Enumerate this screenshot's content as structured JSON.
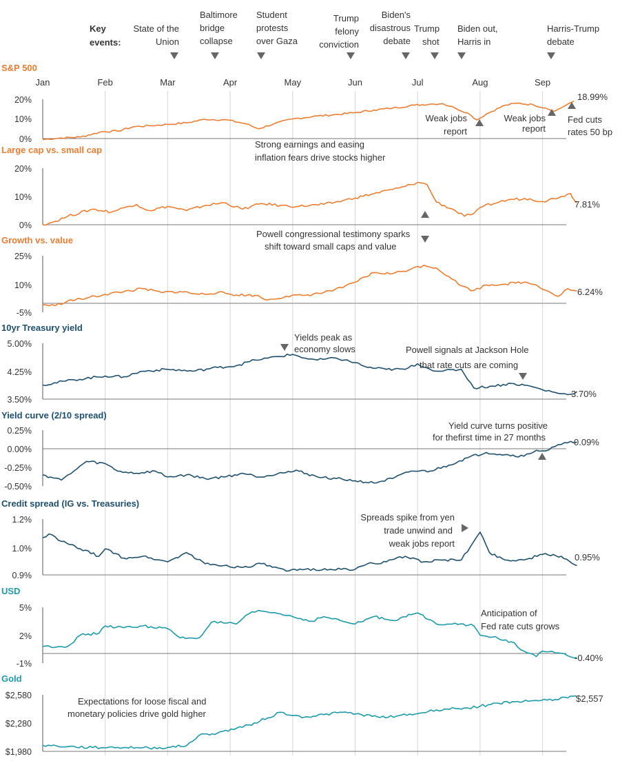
{
  "colors": {
    "orange": "#ee7d30",
    "navy": "#1d4f6e",
    "teal": "#1b9aaa",
    "grid": "#d6d6d6",
    "ref": "#777777",
    "marker": "#666666"
  },
  "header": {
    "key_events_label": [
      "Key",
      "events:"
    ],
    "months": [
      "Jan",
      "Feb",
      "Mar",
      "Apr",
      "May",
      "Jun",
      "Jul",
      "Aug",
      "Sep"
    ],
    "events": [
      {
        "lines": [
          "State of the",
          "Union"
        ],
        "marker": true
      },
      {
        "lines": [
          "Baltimore",
          "bridge",
          "collapse"
        ],
        "marker": true
      },
      {
        "lines": [
          "Student",
          "protests",
          "over Gaza"
        ],
        "marker": true
      },
      {
        "lines": [
          "Trump",
          "felony",
          "conviction"
        ],
        "marker": true
      },
      {
        "lines": [
          "Biden's",
          "disastrous",
          "debate"
        ],
        "marker": true
      },
      {
        "lines": [
          "Trump",
          "shot"
        ],
        "marker": true
      },
      {
        "lines": [
          "Biden out,",
          "Harris in"
        ],
        "marker": true
      },
      {
        "lines": [
          "Harris-Trump",
          "debate"
        ],
        "marker": true
      }
    ]
  },
  "chart_data": [
    {
      "type": "line",
      "title": "S&P 500",
      "color": "orange",
      "y_ticks": [
        "20%",
        "10%",
        "0%"
      ],
      "ylim": [
        0,
        20
      ],
      "baseline": 0,
      "x_months": [
        "Jan",
        "Feb",
        "Mar",
        "Apr",
        "May",
        "Jun",
        "Jul",
        "Aug",
        "Sep"
      ],
      "keypoints": [
        [
          0,
          -0.5
        ],
        [
          0.3,
          0.3
        ],
        [
          0.6,
          0.8
        ],
        [
          0.95,
          3.5
        ],
        [
          1.2,
          3.8
        ],
        [
          1.45,
          6
        ],
        [
          1.7,
          6.5
        ],
        [
          2.0,
          7.2
        ],
        [
          2.3,
          8
        ],
        [
          2.6,
          9.8
        ],
        [
          2.95,
          9.5
        ],
        [
          3.25,
          7.5
        ],
        [
          3.45,
          5
        ],
        [
          3.7,
          7.5
        ],
        [
          4.0,
          10
        ],
        [
          4.4,
          11.5
        ],
        [
          4.7,
          12.2
        ],
        [
          5.0,
          13.2
        ],
        [
          5.3,
          14.5
        ],
        [
          5.6,
          15.5
        ],
        [
          5.95,
          17
        ],
        [
          6.2,
          17.5
        ],
        [
          6.4,
          17.8
        ],
        [
          6.6,
          15.5
        ],
        [
          6.8,
          13
        ],
        [
          6.95,
          9.5
        ],
        [
          7.1,
          12.5
        ],
        [
          7.4,
          17
        ],
        [
          7.6,
          18
        ],
        [
          7.85,
          17.2
        ],
        [
          8.05,
          15.5
        ],
        [
          8.2,
          14
        ],
        [
          8.4,
          17.5
        ],
        [
          8.5,
          18.99
        ]
      ],
      "end_label": "18.99%",
      "annotations": [
        [
          "Weak jobs",
          "report"
        ],
        [
          "Weak jobs",
          "report"
        ],
        [
          "Fed cuts",
          "rates 50 bp"
        ]
      ]
    },
    {
      "type": "line",
      "title": "Large cap vs. small cap",
      "color": "orange",
      "y_ticks": [
        "20%",
        "10%",
        "0%"
      ],
      "ylim": [
        0,
        20
      ],
      "baseline": null,
      "keypoints": [
        [
          0,
          0
        ],
        [
          0.2,
          1.2
        ],
        [
          0.4,
          3
        ],
        [
          0.8,
          5.5
        ],
        [
          1.1,
          4.5
        ],
        [
          1.3,
          6
        ],
        [
          1.5,
          7.2
        ],
        [
          1.7,
          5
        ],
        [
          2.0,
          6.5
        ],
        [
          2.3,
          5
        ],
        [
          2.6,
          6.8
        ],
        [
          2.9,
          7.8
        ],
        [
          3.2,
          5.5
        ],
        [
          3.5,
          7.5
        ],
        [
          3.8,
          6.8
        ],
        [
          4.1,
          6.5
        ],
        [
          4.5,
          7.2
        ],
        [
          4.8,
          8.5
        ],
        [
          5.0,
          9.5
        ],
        [
          5.3,
          11
        ],
        [
          5.6,
          12.5
        ],
        [
          5.8,
          13.5
        ],
        [
          6.0,
          15
        ],
        [
          6.15,
          14.2
        ],
        [
          6.3,
          8
        ],
        [
          6.6,
          5
        ],
        [
          6.75,
          3
        ],
        [
          6.9,
          4
        ],
        [
          7.05,
          6.5
        ],
        [
          7.3,
          8
        ],
        [
          7.5,
          9
        ],
        [
          7.8,
          9.2
        ],
        [
          8.0,
          8.2
        ],
        [
          8.3,
          10
        ],
        [
          8.45,
          11
        ],
        [
          8.5,
          9
        ],
        [
          8.55,
          7.81
        ]
      ],
      "end_label": "7.81%",
      "annotations": [
        [
          "Strong earnings and easing",
          "inflation fears drive stocks higher"
        ],
        [
          "Powell congressional testimony sparks",
          "shift toward small caps and value"
        ]
      ]
    },
    {
      "type": "line",
      "title": "Growth vs. value",
      "color": "orange",
      "y_ticks": [
        "25%",
        "10%",
        "-5%"
      ],
      "ylim": [
        -5,
        25
      ],
      "baseline": 0,
      "keypoints": [
        [
          0,
          -1
        ],
        [
          0.2,
          -1.5
        ],
        [
          0.4,
          1
        ],
        [
          0.7,
          2.5
        ],
        [
          1.0,
          4.5
        ],
        [
          1.3,
          6
        ],
        [
          1.6,
          7.5
        ],
        [
          1.9,
          5.5
        ],
        [
          2.2,
          6
        ],
        [
          2.5,
          4.5
        ],
        [
          2.8,
          5.5
        ],
        [
          3.1,
          4.2
        ],
        [
          3.4,
          4
        ],
        [
          3.6,
          1.5
        ],
        [
          3.9,
          3.5
        ],
        [
          4.2,
          4
        ],
        [
          4.5,
          5.5
        ],
        [
          4.8,
          8
        ],
        [
          5.0,
          11
        ],
        [
          5.3,
          16
        ],
        [
          5.6,
          15.5
        ],
        [
          5.9,
          18
        ],
        [
          6.1,
          20
        ],
        [
          6.3,
          18.5
        ],
        [
          6.5,
          14
        ],
        [
          6.7,
          9
        ],
        [
          6.9,
          6.5
        ],
        [
          7.1,
          9.5
        ],
        [
          7.4,
          10
        ],
        [
          7.7,
          11
        ],
        [
          7.9,
          9.5
        ],
        [
          8.1,
          6
        ],
        [
          8.25,
          3.5
        ],
        [
          8.4,
          7.5
        ],
        [
          8.55,
          6.24
        ]
      ],
      "end_label": "6.24%",
      "annotations": []
    },
    {
      "type": "line",
      "title": "10yr Treasury yield",
      "color": "navy",
      "y_ticks": [
        "5.00%",
        "4.25%",
        "3.50%"
      ],
      "ylim": [
        3.5,
        5.0
      ],
      "baseline": null,
      "keypoints": [
        [
          0,
          3.88
        ],
        [
          0.5,
          4.02
        ],
        [
          1.0,
          4.12
        ],
        [
          1.3,
          4.1
        ],
        [
          1.6,
          4.25
        ],
        [
          2.0,
          4.3
        ],
        [
          2.4,
          4.25
        ],
        [
          2.8,
          4.35
        ],
        [
          3.1,
          4.4
        ],
        [
          3.4,
          4.55
        ],
        [
          3.6,
          4.6
        ],
        [
          4.0,
          4.7
        ],
        [
          4.2,
          4.6
        ],
        [
          4.4,
          4.55
        ],
        [
          4.7,
          4.6
        ],
        [
          5.0,
          4.48
        ],
        [
          5.2,
          4.35
        ],
        [
          5.5,
          4.3
        ],
        [
          5.8,
          4.3
        ],
        [
          6.0,
          4.45
        ],
        [
          6.2,
          4.3
        ],
        [
          6.4,
          4.25
        ],
        [
          6.7,
          4.3
        ],
        [
          6.9,
          3.8
        ],
        [
          7.2,
          3.85
        ],
        [
          7.5,
          3.92
        ],
        [
          7.8,
          3.85
        ],
        [
          8.0,
          3.75
        ],
        [
          8.2,
          3.68
        ],
        [
          8.4,
          3.62
        ],
        [
          8.55,
          3.7
        ]
      ],
      "end_label": "3.70%",
      "annotations": [
        [
          "Yields peak as",
          "economy slows"
        ],
        [
          "Powell signals at Jackson Hole",
          "that rate cuts are coming"
        ]
      ]
    },
    {
      "type": "line",
      "title": "Yield curve (2/10 spread)",
      "color": "navy",
      "y_ticks": [
        "0.25%",
        "0.00%",
        "-0.25%",
        "-0.50%"
      ],
      "ylim": [
        -0.5,
        0.25
      ],
      "baseline": 0,
      "keypoints": [
        [
          0,
          -0.35
        ],
        [
          0.3,
          -0.42
        ],
        [
          0.5,
          -0.3
        ],
        [
          0.7,
          -0.17
        ],
        [
          1.0,
          -0.2
        ],
        [
          1.2,
          -0.3
        ],
        [
          1.5,
          -0.33
        ],
        [
          1.8,
          -0.3
        ],
        [
          2.0,
          -0.38
        ],
        [
          2.3,
          -0.35
        ],
        [
          2.6,
          -0.4
        ],
        [
          2.9,
          -0.38
        ],
        [
          3.2,
          -0.33
        ],
        [
          3.5,
          -0.38
        ],
        [
          3.8,
          -0.32
        ],
        [
          4.1,
          -0.3
        ],
        [
          4.4,
          -0.38
        ],
        [
          4.7,
          -0.4
        ],
        [
          5.0,
          -0.43
        ],
        [
          5.3,
          -0.46
        ],
        [
          5.6,
          -0.4
        ],
        [
          5.9,
          -0.3
        ],
        [
          6.2,
          -0.3
        ],
        [
          6.5,
          -0.22
        ],
        [
          6.8,
          -0.12
        ],
        [
          7.1,
          -0.05
        ],
        [
          7.4,
          -0.08
        ],
        [
          7.7,
          -0.1
        ],
        [
          7.9,
          -0.02
        ],
        [
          8.05,
          -0.03
        ],
        [
          8.2,
          0.03
        ],
        [
          8.4,
          0.08
        ],
        [
          8.55,
          0.09
        ]
      ],
      "end_label": "0.09%",
      "annotations": [
        [
          "Yield curve turns positive",
          "for thefirst time in 27 months"
        ]
      ]
    },
    {
      "type": "line",
      "title": "Credit spread (IG vs. Treasuries)",
      "color": "navy",
      "y_ticks": [
        "1.2%",
        "1.0%",
        "0.9%"
      ],
      "ylim": [
        0.9,
        1.2
      ],
      "baseline": null,
      "keypoints": [
        [
          0,
          1.1
        ],
        [
          0.1,
          1.12
        ],
        [
          0.3,
          1.08
        ],
        [
          0.6,
          1.04
        ],
        [
          0.9,
          1.0
        ],
        [
          1.0,
          1.04
        ],
        [
          1.3,
          0.99
        ],
        [
          1.6,
          1.0
        ],
        [
          2.0,
          0.97
        ],
        [
          2.3,
          1.02
        ],
        [
          2.6,
          0.96
        ],
        [
          2.9,
          0.95
        ],
        [
          3.2,
          0.94
        ],
        [
          3.5,
          0.96
        ],
        [
          3.9,
          0.92
        ],
        [
          4.2,
          0.93
        ],
        [
          4.6,
          0.93
        ],
        [
          5.0,
          0.93
        ],
        [
          5.2,
          0.96
        ],
        [
          5.5,
          0.97
        ],
        [
          5.8,
          1.0
        ],
        [
          6.1,
          0.97
        ],
        [
          6.4,
          0.98
        ],
        [
          6.7,
          0.98
        ],
        [
          6.9,
          1.08
        ],
        [
          7.0,
          1.13
        ],
        [
          7.15,
          1.02
        ],
        [
          7.4,
          0.98
        ],
        [
          7.7,
          0.98
        ],
        [
          8.0,
          1.01
        ],
        [
          8.3,
          1.0
        ],
        [
          8.55,
          0.95
        ]
      ],
      "end_label": "0.95%",
      "annotations": [
        [
          "Spreads spike from yen",
          "trade unwind and",
          "weak jobs report"
        ]
      ]
    },
    {
      "type": "line",
      "title": "USD",
      "color": "teal",
      "y_ticks": [
        "5%",
        "2%",
        "-1%"
      ],
      "ylim": [
        -1,
        5
      ],
      "baseline": 0,
      "keypoints": [
        [
          0,
          0.8
        ],
        [
          0.4,
          0.8
        ],
        [
          0.6,
          2
        ],
        [
          0.9,
          2.2
        ],
        [
          1.0,
          3
        ],
        [
          1.3,
          2.8
        ],
        [
          1.6,
          3.0
        ],
        [
          2.0,
          2.7
        ],
        [
          2.2,
          1.7
        ],
        [
          2.5,
          1.7
        ],
        [
          2.7,
          3.4
        ],
        [
          2.9,
          3.3
        ],
        [
          3.1,
          3.2
        ],
        [
          3.3,
          4.3
        ],
        [
          3.5,
          4.6
        ],
        [
          3.8,
          4.3
        ],
        [
          4.0,
          4.0
        ],
        [
          4.3,
          3.5
        ],
        [
          4.5,
          4.0
        ],
        [
          4.8,
          3.5
        ],
        [
          5.0,
          3.2
        ],
        [
          5.3,
          4.0
        ],
        [
          5.6,
          3.6
        ],
        [
          5.9,
          4.2
        ],
        [
          6.0,
          4.4
        ],
        [
          6.3,
          3.2
        ],
        [
          6.6,
          3.3
        ],
        [
          6.9,
          3.0
        ],
        [
          7.0,
          2.0
        ],
        [
          7.2,
          1.8
        ],
        [
          7.5,
          1.3
        ],
        [
          7.7,
          0.3
        ],
        [
          7.9,
          -0.3
        ],
        [
          8.0,
          0.3
        ],
        [
          8.2,
          0.1
        ],
        [
          8.4,
          -0.2
        ],
        [
          8.55,
          -0.4
        ]
      ],
      "end_label": "-0.40%",
      "annotations": [
        [
          "Anticipation of",
          "Fed rate cuts grows"
        ]
      ]
    },
    {
      "type": "line",
      "title": "Gold",
      "color": "teal",
      "y_ticks": [
        "$2,580",
        "$2,280",
        "$1,980"
      ],
      "ylim": [
        1980,
        2580
      ],
      "baseline": null,
      "keypoints": [
        [
          0,
          2045
        ],
        [
          0.4,
          2030
        ],
        [
          0.8,
          2020
        ],
        [
          1.2,
          2022
        ],
        [
          1.5,
          2020
        ],
        [
          1.7,
          2015
        ],
        [
          2.0,
          2022
        ],
        [
          2.3,
          2040
        ],
        [
          2.5,
          2150
        ],
        [
          2.8,
          2175
        ],
        [
          3.1,
          2225
        ],
        [
          3.3,
          2260
        ],
        [
          3.6,
          2335
        ],
        [
          3.8,
          2395
        ],
        [
          4.0,
          2360
        ],
        [
          4.2,
          2345
        ],
        [
          4.5,
          2370
        ],
        [
          4.8,
          2395
        ],
        [
          5.1,
          2370
        ],
        [
          5.4,
          2340
        ],
        [
          5.7,
          2360
        ],
        [
          6.0,
          2380
        ],
        [
          6.3,
          2420
        ],
        [
          6.6,
          2435
        ],
        [
          6.8,
          2440
        ],
        [
          7.0,
          2460
        ],
        [
          7.3,
          2490
        ],
        [
          7.6,
          2510
        ],
        [
          7.9,
          2520
        ],
        [
          8.2,
          2530
        ],
        [
          8.35,
          2555
        ],
        [
          8.5,
          2565
        ],
        [
          8.55,
          2557
        ]
      ],
      "end_label": "$2,557",
      "annotations": [
        [
          "Expectations for loose fiscal and",
          "monetary policies drive gold higher"
        ]
      ]
    }
  ]
}
